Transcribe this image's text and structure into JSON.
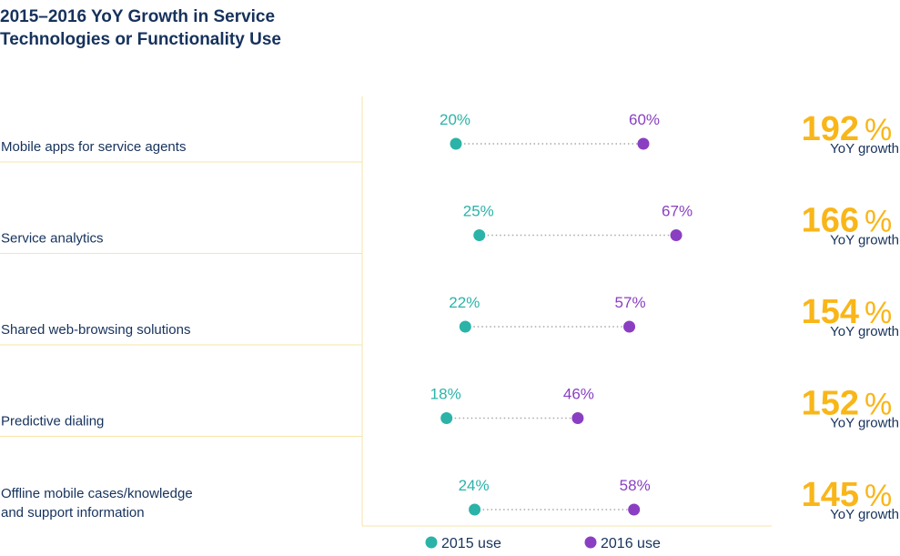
{
  "title": {
    "line1": "2015–2016 YoY Growth in Service",
    "line2": "Technologies or Functionality Use"
  },
  "colors": {
    "use_2015": "#2bb3a8",
    "use_2016": "#8a3fc2",
    "growth": "#f9b619",
    "divider": "#f7e4a6",
    "label": "#16325c"
  },
  "chart_data": {
    "type": "dumbbell",
    "title": "2015–2016 YoY Growth in Service Technologies or Functionality Use",
    "categories": [
      [
        "Mobile apps for service agents"
      ],
      [
        "Service analytics"
      ],
      [
        "Shared web-browsing solutions"
      ],
      [
        "Predictive dialing"
      ],
      [
        "Offline mobile cases/knowledge",
        "and support information"
      ]
    ],
    "series": [
      {
        "name": "2015 use",
        "values": [
          20,
          25,
          22,
          18,
          24
        ],
        "labels": [
          "20%",
          "25%",
          "22%",
          "18%",
          "24%"
        ]
      },
      {
        "name": "2016 use",
        "values": [
          60,
          67,
          57,
          46,
          58
        ],
        "labels": [
          "60%",
          "67%",
          "57%",
          "46%",
          "58%"
        ]
      }
    ],
    "growth": {
      "values": [
        "192",
        "166",
        "154",
        "152",
        "145"
      ],
      "unit": "%",
      "caption": "YoY growth"
    },
    "legend": {
      "position": "bottom",
      "items": [
        "2015 use",
        "2016 use"
      ]
    }
  }
}
